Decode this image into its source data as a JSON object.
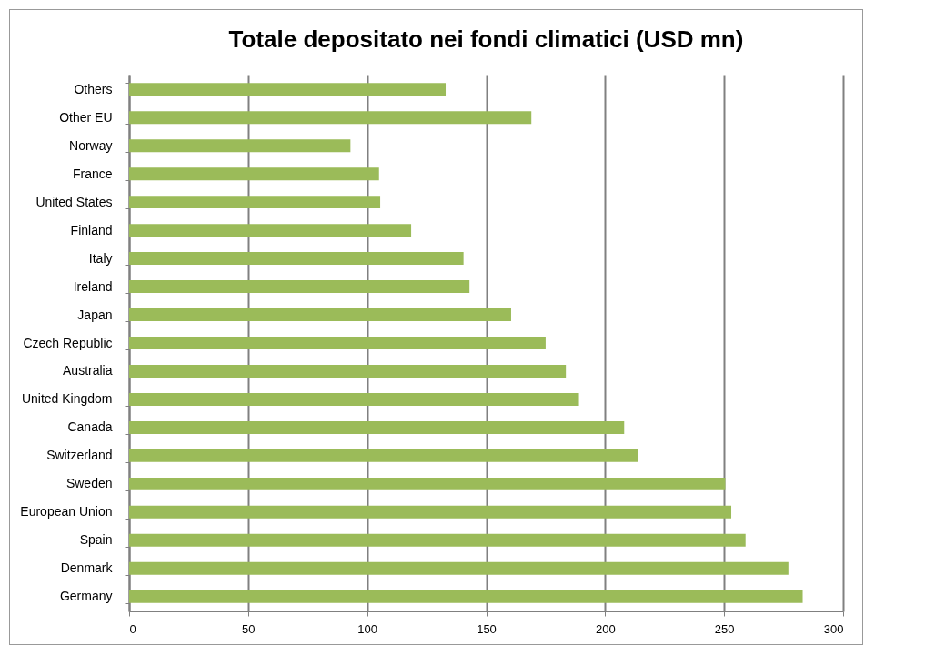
{
  "chart_data": {
    "type": "bar",
    "orientation": "horizontal",
    "title": "Totale depositato nei fondi climatici (USD mn)",
    "categories": [
      "Others",
      "Other EU",
      "Norway",
      "France",
      "United States",
      "Finland",
      "Italy",
      "Ireland",
      "Japan",
      "Czech Republic",
      "Australia",
      "United Kingdom",
      "Canada",
      "Switzerland",
      "Sweden",
      "European Union",
      "Spain",
      "Denmark",
      "Germany"
    ],
    "values": [
      133,
      169,
      93,
      105,
      105.5,
      118.5,
      140.5,
      143,
      160.5,
      175,
      183.5,
      189,
      208,
      214,
      250.5,
      253,
      259,
      277,
      283
    ],
    "color": "#9bbb59",
    "xlim": [
      0,
      300
    ],
    "xticks": [
      0,
      50,
      100,
      150,
      200,
      250,
      300
    ],
    "grid": "x"
  }
}
